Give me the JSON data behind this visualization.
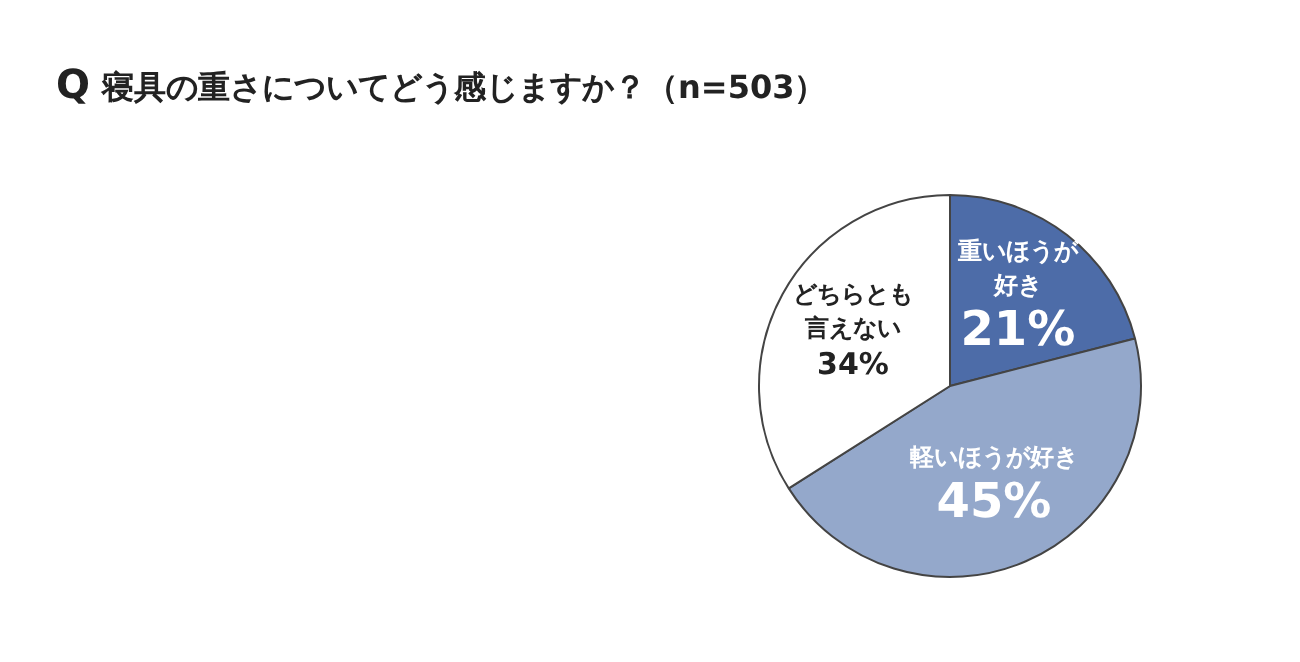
{
  "chart_data": {
    "type": "pie",
    "title": "Q 寝具の重さについてどう感じますか？（n=503）",
    "categories": [
      "重いほうが好き",
      "軽いほうが好き",
      "どちらとも言えない"
    ],
    "values": [
      21,
      45,
      34
    ],
    "colors": [
      "#4d6ca8",
      "#94a8cb",
      "#ffffff"
    ],
    "value_labels": [
      "21%",
      "45%",
      "34%"
    ],
    "legend": false
  }
}
